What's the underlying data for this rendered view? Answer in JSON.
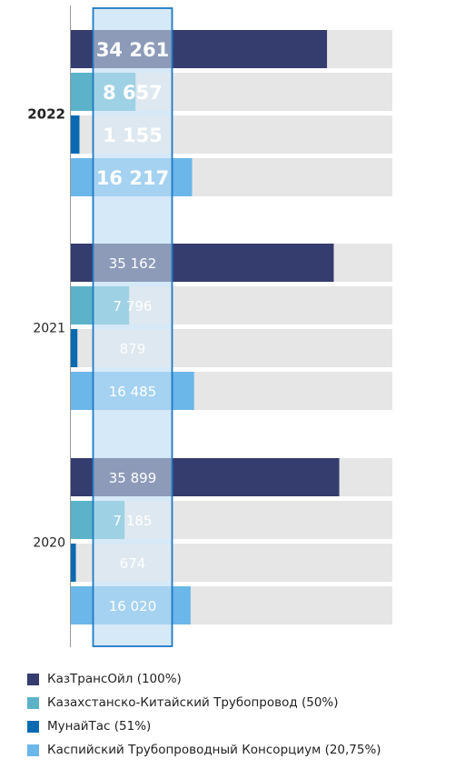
{
  "chart_data": {
    "type": "bar",
    "orientation": "horizontal",
    "groups": [
      {
        "year": "2022",
        "emphasized": true,
        "values": [
          34261,
          8657,
          1155,
          16217
        ],
        "labels": [
          "34 261",
          "8 657",
          "1 155",
          "16 217"
        ]
      },
      {
        "year": "2021",
        "emphasized": false,
        "values": [
          35162,
          7796,
          879,
          16485
        ],
        "labels": [
          "35 162",
          "7 796",
          "879",
          "16 485"
        ]
      },
      {
        "year": "2020",
        "emphasized": false,
        "values": [
          35899,
          7185,
          674,
          16020
        ],
        "labels": [
          "35 899",
          "7 185",
          "674",
          "16 020"
        ]
      }
    ],
    "series": [
      {
        "name": "КазТрансОйл (100%)",
        "color": "#353c6e"
      },
      {
        "name": "Казахстанско-Китайский Трубопровод (50%)",
        "color": "#5cb3c9"
      },
      {
        "name": "МунайТас (51%)",
        "color": "#0a6ab1"
      },
      {
        "name": "Каспийский Трубопроводный Консорциум (20,75%)",
        "color": "#6bb7e9"
      }
    ],
    "xlim": [
      0,
      43000
    ],
    "track_color": "#e6e6e6",
    "highlight_band_color": "#d6e9f8",
    "highlight_border_color": "#1f79c3",
    "legend_position": "bottom-left",
    "grid": false
  }
}
